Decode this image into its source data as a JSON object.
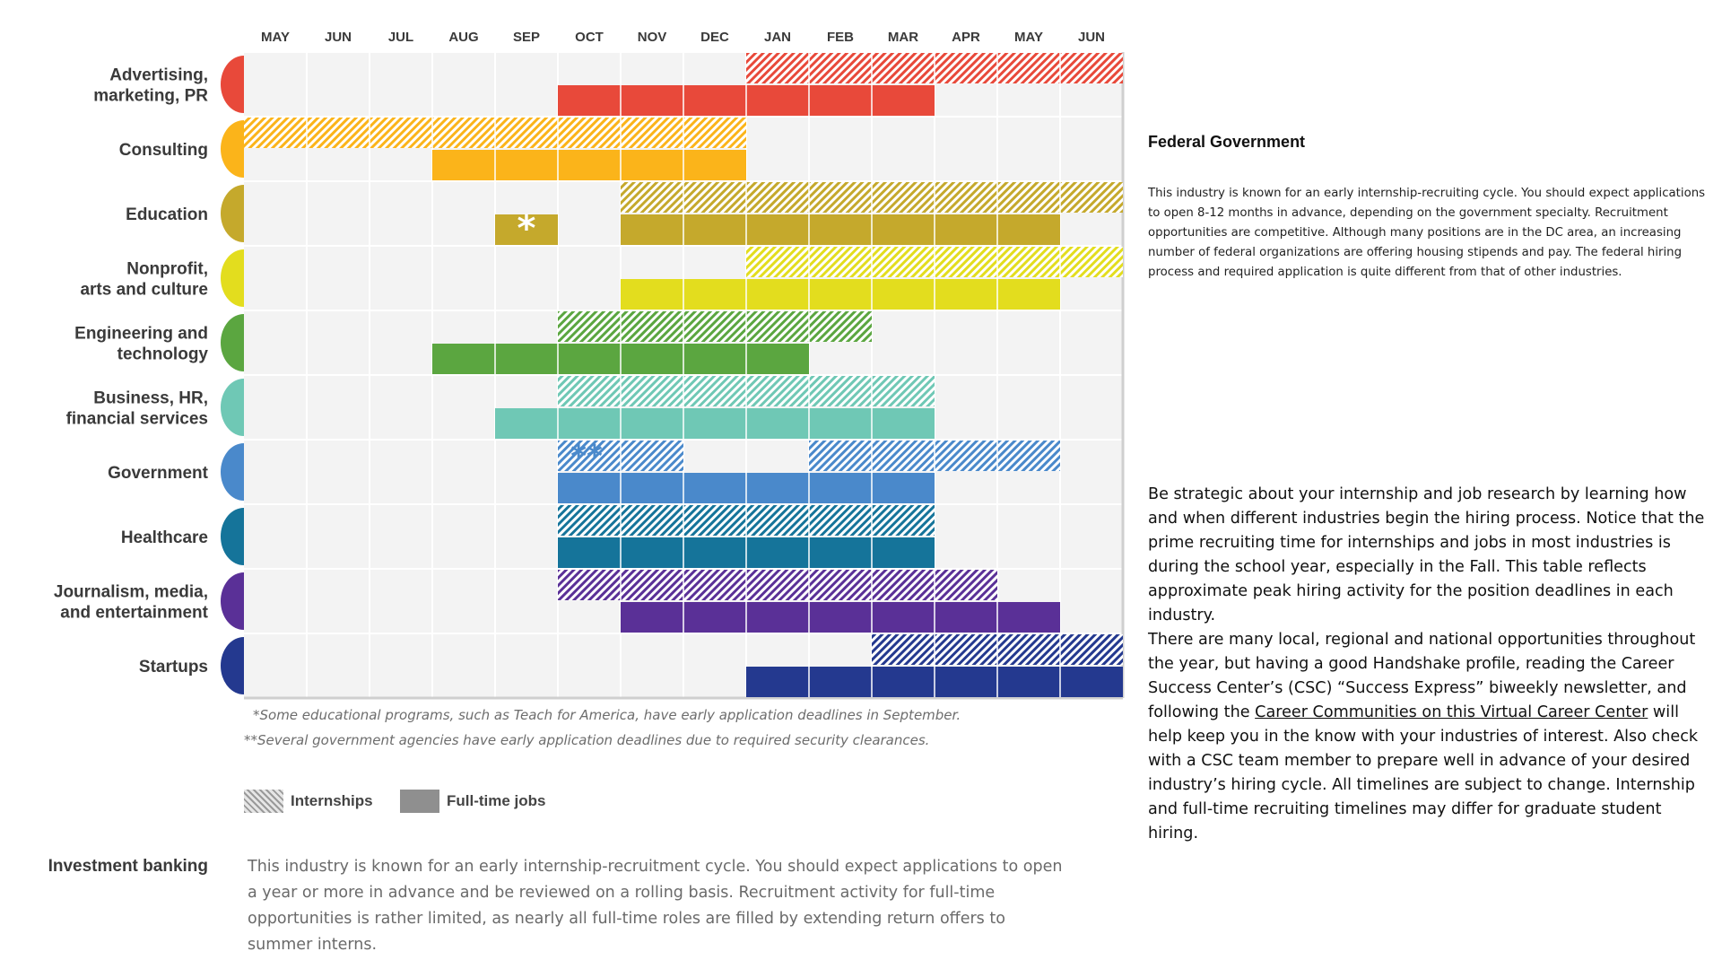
{
  "chart_data": {
    "type": "gantt",
    "months": [
      "MAY",
      "JUN",
      "JUL",
      "AUG",
      "SEP",
      "OCT",
      "NOV",
      "DEC",
      "JAN",
      "FEB",
      "MAR",
      "APR",
      "MAY",
      "JUN"
    ],
    "categories": [
      {
        "lines": [
          "Advertising,",
          "marketing, PR"
        ],
        "color": "#e8493a",
        "internships": [
          [
            8,
            14
          ]
        ],
        "fulltime": [
          [
            5,
            11
          ]
        ],
        "marks": []
      },
      {
        "lines": [
          "Consulting"
        ],
        "color": "#fbb41a",
        "internships": [
          [
            0,
            8
          ]
        ],
        "fulltime": [
          [
            3,
            8
          ]
        ],
        "marks": []
      },
      {
        "lines": [
          "Education"
        ],
        "color": "#c5a92c",
        "internships": [
          [
            6,
            14
          ]
        ],
        "fulltime": [
          [
            4,
            5
          ],
          [
            6,
            13
          ]
        ],
        "marks": [
          {
            "row": "fulltime",
            "month": 4,
            "text": "*"
          }
        ]
      },
      {
        "lines": [
          "Nonprofit,",
          "arts and culture"
        ],
        "color": "#e3dd1e",
        "internships": [
          [
            8,
            14
          ]
        ],
        "fulltime": [
          [
            6,
            13
          ]
        ],
        "marks": []
      },
      {
        "lines": [
          "Engineering and",
          "technology"
        ],
        "color": "#5ba640",
        "internships": [
          [
            5,
            10
          ]
        ],
        "fulltime": [
          [
            3,
            9
          ]
        ],
        "marks": []
      },
      {
        "lines": [
          "Business, HR,",
          "financial services"
        ],
        "color": "#6fc8b5",
        "internships": [
          [
            5,
            11
          ]
        ],
        "fulltime": [
          [
            4,
            11
          ]
        ],
        "marks": []
      },
      {
        "lines": [
          "Government"
        ],
        "color": "#4a89cb",
        "internships": [
          [
            5,
            7
          ],
          [
            9,
            13
          ]
        ],
        "fulltime": [
          [
            5,
            11
          ]
        ],
        "marks": [
          {
            "row": "internships",
            "month": 5,
            "text": "**"
          }
        ]
      },
      {
        "lines": [
          "Healthcare"
        ],
        "color": "#15749a",
        "internships": [
          [
            5,
            11
          ]
        ],
        "fulltime": [
          [
            5,
            11
          ]
        ],
        "marks": []
      },
      {
        "lines": [
          "Journalism, media,",
          "and entertainment"
        ],
        "color": "#5a3097",
        "internships": [
          [
            5,
            12
          ]
        ],
        "fulltime": [
          [
            6,
            13
          ]
        ],
        "marks": []
      },
      {
        "lines": [
          "Startups"
        ],
        "color": "#24398f",
        "internships": [
          [
            10,
            14
          ]
        ],
        "fulltime": [
          [
            8,
            14
          ]
        ],
        "marks": []
      }
    ],
    "legend": {
      "internships": "Internships",
      "fulltime": "Full-time jobs"
    },
    "footnotes": [
      "*Some educational programs, such as Teach for America, have early application deadlines in September.",
      "**Several government agencies have early application deadlines due to required security clearances."
    ]
  },
  "investment_banking": {
    "label": "Investment banking",
    "text": "This industry is known for an early internship-recruitment cycle. You should expect applications to open a year or more in advance and be reviewed on a rolling basis. Recruitment activity for full-time opportunities is rather limited, as nearly all full-time roles are filled by extending return offers to summer interns."
  },
  "federal": {
    "title": "Federal Government",
    "text": "This industry is known for an early internship-recruiting cycle. You should expect applications to open 8-12 months in advance, depending on the government specialty. Recruitment opportunities are competitive. Although many positions are in the DC area, an increasing number of federal organizations are offering housing stipends and pay. The federal hiring process and required application is quite different from that of other industries."
  },
  "intro": {
    "paragraph1": "Be strategic about your internship and job research by learning how and when different industries begin the hiring process. Notice that the prime recruiting time for internships and jobs in most industries is during the school year, especially in the Fall. This table reflects approximate peak hiring activity for the position deadlines in each industry.",
    "paragraph2_before": "There are many local, regional and national opportunities throughout the year, but having a good Handshake profile, reading the Career Success Center’s (CSC) “Success Express” biweekly newsletter, and following the ",
    "paragraph2_link": "Career Communities on this Virtual Career Center",
    "paragraph2_after": " will help keep you in the know with your industries of interest. Also check with a CSC team member to prepare well in advance of your desired industry’s hiring cycle. All timelines are subject to change. Internship and full-time recruiting timelines may differ for graduate student hiring."
  }
}
